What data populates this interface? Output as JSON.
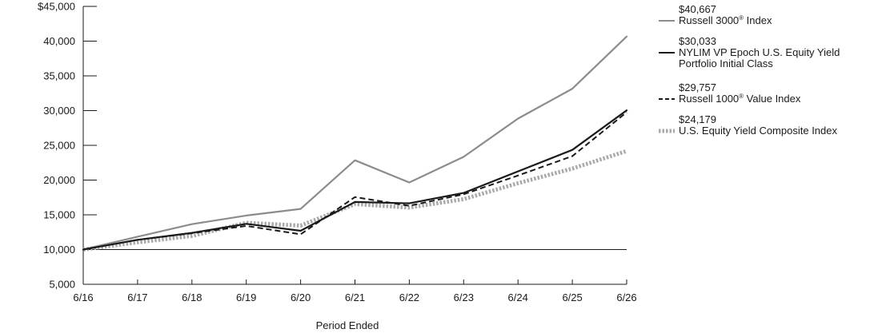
{
  "chart_data": {
    "type": "line",
    "title": "",
    "xlabel": "Period Ended",
    "ylabel": "",
    "x": [
      "6/16",
      "6/17",
      "6/18",
      "6/19",
      "6/20",
      "6/21",
      "6/22",
      "6/23",
      "6/24",
      "6/25",
      "6/26"
    ],
    "y_ticks": [
      "$45,000",
      "40,000",
      "35,000",
      "30,000",
      "25,000",
      "20,000",
      "15,000",
      "10,000",
      "5,000"
    ],
    "ylim": [
      5000,
      45000
    ],
    "baseline": 10000,
    "grid": false,
    "legend_position": "right",
    "series": [
      {
        "name": "Russell 3000® Index",
        "name_main": "Russell 3000",
        "name_sup": "®",
        "name_tail": " Index",
        "name_line2": "",
        "ending_value": "$40,667",
        "color": "#8c8c8c",
        "style": "solid",
        "values": [
          10000,
          11850,
          13650,
          14900,
          15850,
          22850,
          19650,
          23350,
          28850,
          33150,
          40667
        ]
      },
      {
        "name": "NYLIM VP Epoch U.S. Equity Yield Portfolio Initial Class",
        "name_main": "NYLIM VP Epoch U.S. Equity Yield",
        "name_sup": "",
        "name_tail": "",
        "name_line2": "Portfolio Initial Class",
        "ending_value": "$30,033",
        "color": "#1a1a1a",
        "style": "solid",
        "values": [
          10000,
          11400,
          12400,
          13700,
          12700,
          16850,
          16650,
          18150,
          21250,
          24350,
          30033
        ]
      },
      {
        "name": "Russell 1000® Value Index",
        "name_main": "Russell 1000",
        "name_sup": "®",
        "name_tail": " Value Index",
        "name_line2": "",
        "ending_value": "$29,757",
        "color": "#1a1a1a",
        "style": "dashed",
        "values": [
          10000,
          11400,
          12350,
          13400,
          12200,
          17550,
          16300,
          17950,
          20650,
          23450,
          29757
        ]
      },
      {
        "name": "U.S. Equity Yield Composite Index",
        "name_main": "U.S. Equity Yield Composite Index",
        "name_sup": "",
        "name_tail": "",
        "name_line2": "",
        "ending_value": "$24,179",
        "color": "#aaaaaa",
        "style": "dotted-thick",
        "values": [
          10000,
          11050,
          11950,
          13850,
          13450,
          16550,
          16050,
          17250,
          19550,
          21650,
          24179
        ]
      }
    ]
  }
}
